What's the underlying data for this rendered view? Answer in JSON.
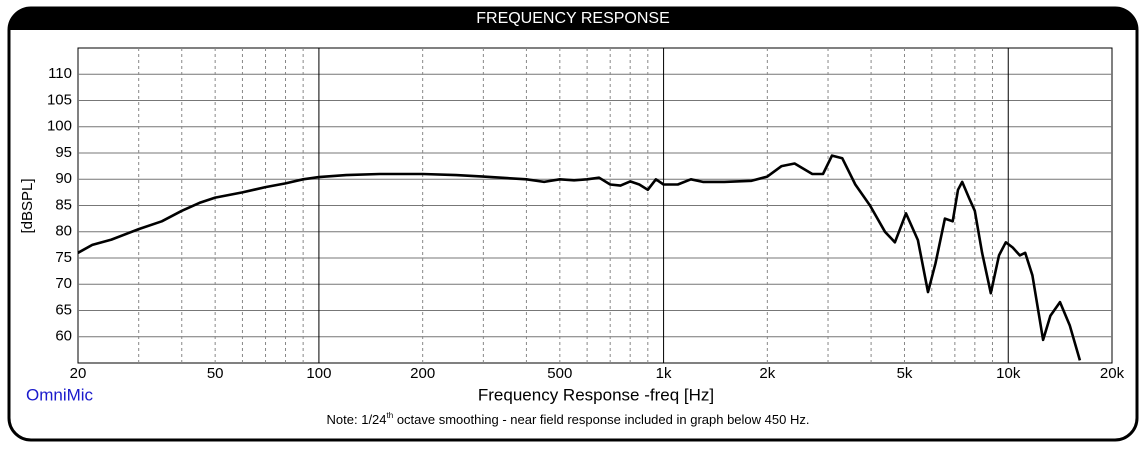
{
  "chart_data": {
    "type": "line",
    "title": "FREQUENCY RESPONSE",
    "xlabel": "Frequency Response -freq [Hz]",
    "ylabel": "[dBSPL]",
    "brand": "OmniMic",
    "note": {
      "prefix": "Note: 1/24",
      "sup": "th",
      "suffix": " octave smoothing - near field response included in graph below 450 Hz."
    },
    "xscale": "log",
    "xlim": [
      20,
      20000
    ],
    "xticks": [
      20,
      50,
      100,
      200,
      500,
      {
        "value": 1000,
        "label": "1k"
      },
      {
        "value": 2000,
        "label": "2k"
      },
      {
        "value": 5000,
        "label": "5k"
      },
      {
        "value": 10000,
        "label": "10k"
      },
      {
        "value": 20000,
        "label": "20k"
      }
    ],
    "xminor": [
      30,
      40,
      60,
      70,
      80,
      90,
      300,
      400,
      600,
      700,
      800,
      900,
      3000,
      4000,
      6000,
      7000,
      8000,
      9000
    ],
    "ylim": [
      55,
      115
    ],
    "yticks": [
      60,
      65,
      70,
      75,
      80,
      85,
      90,
      95,
      100,
      105,
      110
    ],
    "grid": true,
    "color": "#000000",
    "x": [
      20,
      22,
      25,
      30,
      35,
      40,
      45,
      50,
      60,
      70,
      80,
      90,
      100,
      120,
      150,
      200,
      250,
      300,
      400,
      450,
      500,
      550,
      600,
      650,
      700,
      750,
      800,
      850,
      900,
      950,
      1000,
      1100,
      1200,
      1300,
      1500,
      1800,
      2000,
      2200,
      2400,
      2700,
      2900,
      3080,
      3300,
      3600,
      3970,
      4390,
      4690,
      5050,
      5470,
      5850,
      6150,
      6550,
      6900,
      7150,
      7350,
      7700,
      8000,
      8400,
      8900,
      9400,
      9840,
      10300,
      10800,
      11200,
      11750,
      12620,
      13250,
      14130,
      15080,
      16140
    ],
    "values": [
      76,
      77.5,
      78.5,
      80.5,
      82,
      84,
      85.5,
      86.5,
      87.5,
      88.5,
      89.2,
      90,
      90.4,
      90.8,
      91,
      91,
      90.8,
      90.5,
      90,
      89.5,
      90,
      89.8,
      90,
      90.3,
      89,
      88.8,
      89.6,
      89,
      88,
      90,
      89,
      89,
      90,
      89.5,
      89.5,
      89.7,
      90.5,
      92.5,
      93,
      91,
      91,
      94.5,
      94,
      89,
      85,
      80,
      78,
      83.5,
      78.4,
      68.5,
      74,
      82.5,
      82,
      88,
      89.5,
      86.4,
      84,
      76,
      68.3,
      75.5,
      78,
      77,
      75.5,
      76,
      71.7,
      59.4,
      64,
      66.6,
      62.2,
      55.5
    ]
  }
}
